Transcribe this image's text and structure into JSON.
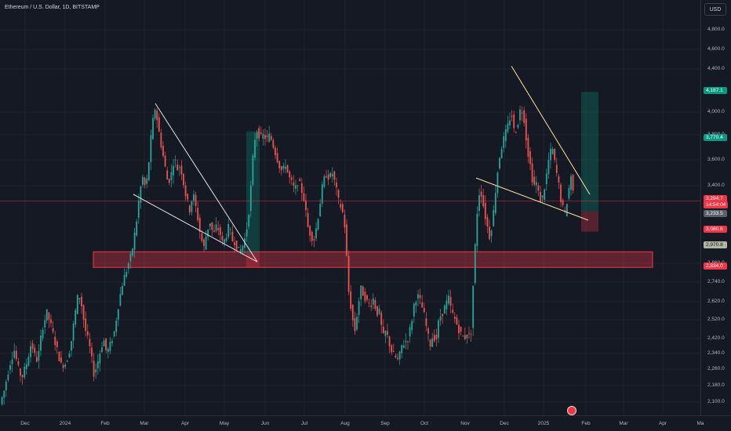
{
  "header": {
    "title": "Ethereum / U.S. Dollar, 1D, BITSTAMP",
    "currency": "USD"
  },
  "colors": {
    "bg": "#151924",
    "up": "#26a69a",
    "down": "#ef5350",
    "zone": "#f23645",
    "trendline": "#ffffff",
    "trendline2": "#ffe0a0"
  },
  "chart_data": {
    "type": "candlestick",
    "symbol": "ETH/USD",
    "interval": "1D",
    "ylim": [
      2060,
      4980
    ],
    "y_ticks": [
      {
        "value": 4800,
        "label": "4,800.0"
      },
      {
        "value": 4600,
        "label": "4,600.0"
      },
      {
        "value": 4400,
        "label": "4,400.0"
      },
      {
        "value": 4000,
        "label": "4,000.0"
      },
      {
        "value": 3800,
        "label": "3,800.0"
      },
      {
        "value": 3600,
        "label": "3,600.0"
      },
      {
        "value": 3400,
        "label": "3,400.0"
      },
      {
        "value": 2860,
        "label": "2,860.0"
      },
      {
        "value": 2740,
        "label": "2,740.0"
      },
      {
        "value": 2620,
        "label": "2,620.0"
      },
      {
        "value": 2520,
        "label": "2,520.0"
      },
      {
        "value": 2420,
        "label": "2,420.0"
      },
      {
        "value": 2340,
        "label": "2,340.0"
      },
      {
        "value": 2260,
        "label": "2,260.0"
      },
      {
        "value": 2180,
        "label": "2,180.0"
      },
      {
        "value": 2100,
        "label": "2,100.0"
      }
    ],
    "x_ticks": [
      "Dec",
      "2024",
      "Feb",
      "Mar",
      "Apr",
      "May",
      "Jun",
      "Jul",
      "Aug",
      "Sep",
      "Oct",
      "Nov",
      "Dec",
      "2025",
      "Feb",
      "Mar",
      "Apr",
      "Ma"
    ],
    "price_path": [
      [
        0,
        2090
      ],
      [
        5,
        2150
      ],
      [
        12,
        2280
      ],
      [
        18,
        2360
      ],
      [
        24,
        2250
      ],
      [
        28,
        2220
      ],
      [
        34,
        2290
      ],
      [
        40,
        2400
      ],
      [
        44,
        2330
      ],
      [
        48,
        2300
      ],
      [
        54,
        2480
      ],
      [
        60,
        2560
      ],
      [
        66,
        2470
      ],
      [
        72,
        2370
      ],
      [
        78,
        2280
      ],
      [
        84,
        2290
      ],
      [
        90,
        2380
      ],
      [
        96,
        2560
      ],
      [
        100,
        2680
      ],
      [
        104,
        2600
      ],
      [
        108,
        2480
      ],
      [
        114,
        2380
      ],
      [
        120,
        2230
      ],
      [
        126,
        2320
      ],
      [
        132,
        2420
      ],
      [
        136,
        2340
      ],
      [
        140,
        2380
      ],
      [
        146,
        2460
      ],
      [
        150,
        2580
      ],
      [
        156,
        2730
      ],
      [
        162,
        2830
      ],
      [
        168,
        2930
      ],
      [
        174,
        3150
      ],
      [
        178,
        3350
      ],
      [
        182,
        3460
      ],
      [
        186,
        3370
      ],
      [
        190,
        3600
      ],
      [
        194,
        3880
      ],
      [
        198,
        4050
      ],
      [
        202,
        3850
      ],
      [
        206,
        3700
      ],
      [
        210,
        3560
      ],
      [
        214,
        3420
      ],
      [
        218,
        3480
      ],
      [
        222,
        3620
      ],
      [
        226,
        3530
      ],
      [
        230,
        3560
      ],
      [
        234,
        3420
      ],
      [
        238,
        3300
      ],
      [
        242,
        3230
      ],
      [
        246,
        3350
      ],
      [
        252,
        3180
      ],
      [
        256,
        3040
      ],
      [
        260,
        2970
      ],
      [
        264,
        3090
      ],
      [
        268,
        3150
      ],
      [
        272,
        3050
      ],
      [
        276,
        3120
      ],
      [
        280,
        3080
      ],
      [
        284,
        2990
      ],
      [
        288,
        3050
      ],
      [
        292,
        3120
      ],
      [
        296,
        3020
      ],
      [
        300,
        3010
      ],
      [
        304,
        2940
      ],
      [
        308,
        2960
      ],
      [
        312,
        3030
      ],
      [
        316,
        3150
      ],
      [
        320,
        3400
      ],
      [
        324,
        3750
      ],
      [
        328,
        3850
      ],
      [
        332,
        3770
      ],
      [
        336,
        3800
      ],
      [
        340,
        3760
      ],
      [
        344,
        3800
      ],
      [
        348,
        3720
      ],
      [
        352,
        3640
      ],
      [
        356,
        3560
      ],
      [
        360,
        3500
      ],
      [
        364,
        3570
      ],
      [
        368,
        3470
      ],
      [
        372,
        3420
      ],
      [
        376,
        3360
      ],
      [
        380,
        3440
      ],
      [
        384,
        3380
      ],
      [
        388,
        3300
      ],
      [
        392,
        3120
      ],
      [
        396,
        3060
      ],
      [
        400,
        3020
      ],
      [
        404,
        3130
      ],
      [
        408,
        3280
      ],
      [
        412,
        3430
      ],
      [
        416,
        3490
      ],
      [
        420,
        3460
      ],
      [
        424,
        3500
      ],
      [
        428,
        3390
      ],
      [
        432,
        3280
      ],
      [
        436,
        3240
      ],
      [
        440,
        3100
      ],
      [
        444,
        2700
      ],
      [
        448,
        2570
      ],
      [
        452,
        2450
      ],
      [
        456,
        2580
      ],
      [
        460,
        2700
      ],
      [
        464,
        2660
      ],
      [
        468,
        2620
      ],
      [
        472,
        2600
      ],
      [
        476,
        2640
      ],
      [
        480,
        2560
      ],
      [
        484,
        2560
      ],
      [
        488,
        2420
      ],
      [
        492,
        2460
      ],
      [
        496,
        2400
      ],
      [
        500,
        2340
      ],
      [
        504,
        2320
      ],
      [
        508,
        2300
      ],
      [
        512,
        2380
      ],
      [
        516,
        2400
      ],
      [
        520,
        2420
      ],
      [
        524,
        2490
      ],
      [
        528,
        2610
      ],
      [
        532,
        2660
      ],
      [
        536,
        2620
      ],
      [
        540,
        2560
      ],
      [
        544,
        2470
      ],
      [
        548,
        2380
      ],
      [
        552,
        2440
      ],
      [
        556,
        2410
      ],
      [
        560,
        2530
      ],
      [
        564,
        2560
      ],
      [
        568,
        2600
      ],
      [
        572,
        2640
      ],
      [
        576,
        2560
      ],
      [
        580,
        2520
      ],
      [
        584,
        2480
      ],
      [
        588,
        2440
      ],
      [
        592,
        2420
      ],
      [
        596,
        2460
      ],
      [
        600,
        2400
      ],
      [
        604,
        2800
      ],
      [
        608,
        3200
      ],
      [
        612,
        3400
      ],
      [
        616,
        3270
      ],
      [
        620,
        3150
      ],
      [
        624,
        3050
      ],
      [
        628,
        3150
      ],
      [
        632,
        3380
      ],
      [
        636,
        3600
      ],
      [
        640,
        3720
      ],
      [
        644,
        3800
      ],
      [
        648,
        3890
      ],
      [
        652,
        4000
      ],
      [
        656,
        3800
      ],
      [
        660,
        3900
      ],
      [
        664,
        4050
      ],
      [
        668,
        3950
      ],
      [
        672,
        3700
      ],
      [
        676,
        3560
      ],
      [
        680,
        3400
      ],
      [
        684,
        3420
      ],
      [
        688,
        3300
      ],
      [
        692,
        3320
      ],
      [
        696,
        3450
      ],
      [
        700,
        3620
      ],
      [
        704,
        3700
      ],
      [
        708,
        3550
      ],
      [
        712,
        3420
      ],
      [
        716,
        3270
      ],
      [
        720,
        3200
      ],
      [
        724,
        3330
      ],
      [
        728,
        3480
      ],
      [
        732,
        3290
      ]
    ],
    "levels": [
      {
        "label": "4,187.1",
        "value": 4187,
        "color": "#089981"
      },
      {
        "label": "3,770.4",
        "value": 3770,
        "color": "#089981"
      },
      {
        "label": "3,294.7",
        "value": 3295,
        "color": "#f23645"
      },
      {
        "label": "14:54:04",
        "value": 3270,
        "color": "#f23645"
      },
      {
        "label": "3,233.5",
        "value": 3234,
        "color": "#5d606b"
      },
      {
        "label": "3,080.8",
        "value": 3081,
        "color": "#f23645"
      },
      {
        "label": "2,970.8",
        "value": 2971,
        "color": "#b2b5a0"
      },
      {
        "label": "2,834.0",
        "value": 2834,
        "color": "#f23645"
      }
    ],
    "support_zone": [
      2834,
      2940
    ],
    "current_price": 3294.7,
    "trendlines": [
      {
        "from": [
          198,
          4080
        ],
        "to": [
          328,
          2870
        ],
        "color": "#e0e3eb"
      },
      {
        "from": [
          170,
          3340
        ],
        "to": [
          328,
          2870
        ],
        "color": "#e0e3eb"
      },
      {
        "from": [
          652,
          4430
        ],
        "to": [
          752,
          3340
        ],
        "color": "#ffe0a0"
      },
      {
        "from": [
          607,
          3460
        ],
        "to": [
          750,
          3160
        ],
        "color": "#ffe0a0"
      }
    ],
    "positions": [
      {
        "x": [
          314,
          331
        ],
        "entry": 2930,
        "target": 3830,
        "stop": 2834
      },
      {
        "x": [
          741,
          763
        ],
        "entry": 3220,
        "target": 4187,
        "stop": 3080
      }
    ]
  }
}
